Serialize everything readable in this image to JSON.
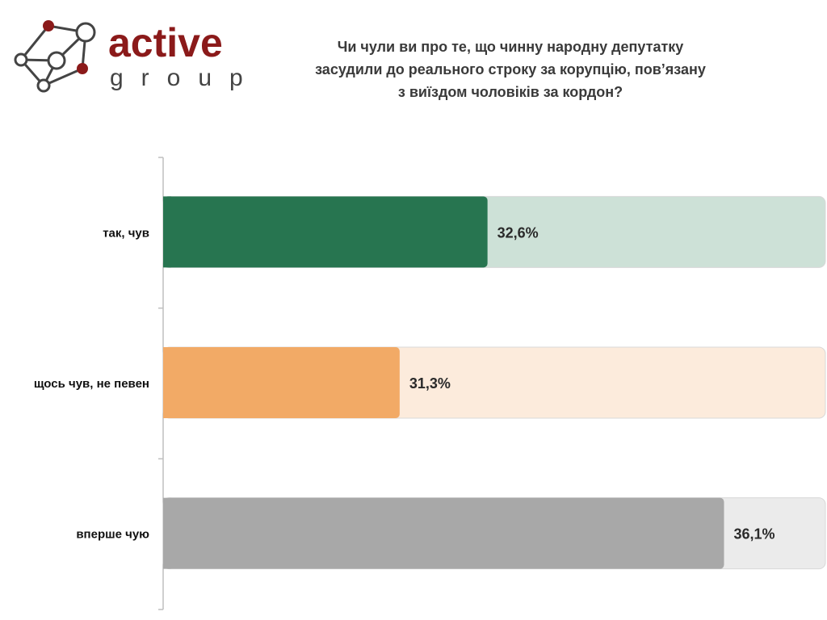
{
  "logo": {
    "text_main": "active",
    "text_sub": "group",
    "color": "#8b1a1a"
  },
  "chart_data": {
    "type": "bar",
    "orientation": "horizontal",
    "title_lines": [
      "Чи чули ви про те, що чинну народну депутатку",
      "засудили до реального строку за корупцію, пов’язану",
      "з виїздом чоловіків за кордон?"
    ],
    "categories": [
      "так, чув",
      "щось чув, не певен",
      "вперше чую"
    ],
    "values": [
      32.6,
      31.3,
      36.1
    ],
    "data_labels": [
      "32,6%",
      "31,3%",
      "36,1%"
    ],
    "xlim": [
      27.8,
      37.6
    ],
    "grid": false,
    "legend": "none",
    "colors": [
      "#277550",
      "#f2aa66",
      "#a8a8a8"
    ],
    "track_colors": [
      "#cde1d7",
      "#fcebdc",
      "#ebebeb"
    ]
  }
}
